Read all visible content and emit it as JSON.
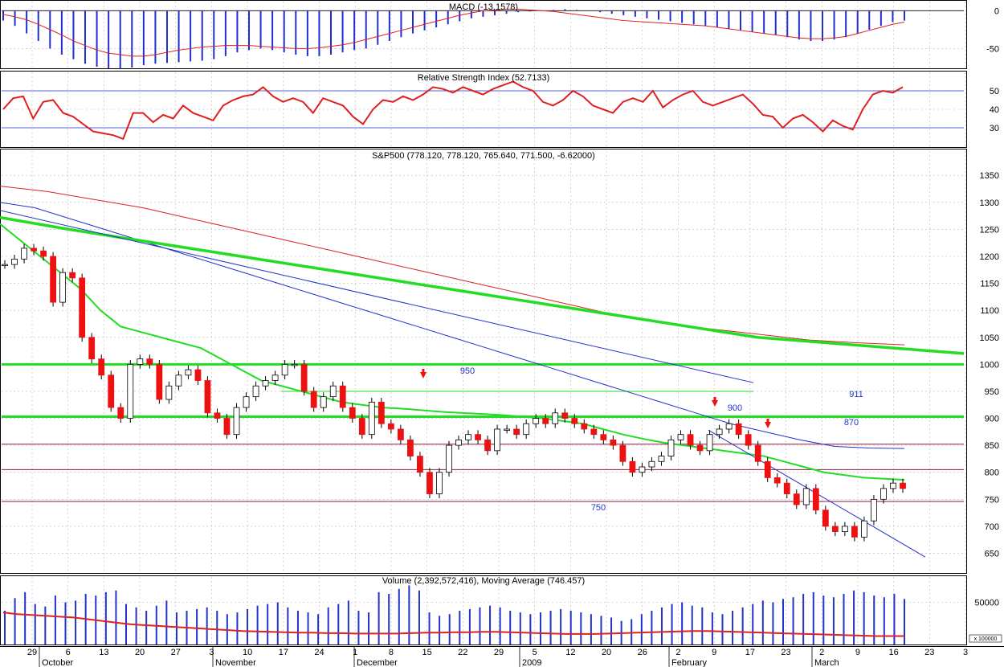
{
  "chart_data": [
    {
      "type": "bar",
      "panel": "macd",
      "title": "MACD (-13.1578)",
      "ylim": [
        -75,
        12
      ],
      "yticks": [
        0,
        -50
      ],
      "grid": true,
      "series": [
        {
          "values": [
            -13,
            -20,
            -30,
            -40,
            -50,
            -58,
            -64,
            -70,
            -74,
            -76,
            -77,
            -75,
            -72,
            -70,
            -69,
            -68,
            -67,
            -66,
            -64,
            -60,
            -55,
            -52,
            -50,
            -52,
            -55,
            -58,
            -60,
            -60,
            -58,
            -55,
            -52,
            -50,
            -45,
            -40,
            -35,
            -30,
            -26,
            -22,
            -18,
            -14,
            -10,
            -8,
            -6,
            -4,
            -2,
            -1,
            0,
            1,
            2,
            1,
            0,
            -2,
            -4,
            -6,
            -8,
            -10,
            -12,
            -14,
            -16,
            -18,
            -20,
            -22,
            -24,
            -26,
            -28,
            -30,
            -32,
            -35,
            -38,
            -40,
            -40,
            -38,
            -35,
            -30,
            -25,
            -20,
            -15,
            -13
          ]
        },
        {
          "values": [
            -5,
            -8,
            -12,
            -18,
            -25,
            -32,
            -40,
            -46,
            -52,
            -56,
            -58,
            -60,
            -60,
            -58,
            -55,
            -52,
            -50,
            -48,
            -47,
            -46,
            -46,
            -46,
            -47,
            -48,
            -49,
            -50,
            -50,
            -49,
            -47,
            -45,
            -42,
            -38,
            -34,
            -30,
            -26,
            -22,
            -18,
            -14,
            -10,
            -6,
            -3,
            0,
            1,
            2,
            2,
            1,
            0,
            -1,
            -3,
            -5,
            -7,
            -9,
            -11,
            -13,
            -14,
            -15,
            -16,
            -17,
            -18,
            -19,
            -20,
            -22,
            -24,
            -26,
            -28,
            -30,
            -32,
            -34,
            -36,
            -37,
            -37,
            -36,
            -34,
            -30,
            -26,
            -22,
            -18,
            -15
          ]
        }
      ]
    },
    {
      "type": "line",
      "panel": "rsi",
      "title": "Relative Strength Index (52.7133)",
      "ylim": [
        20,
        60
      ],
      "yticks": [
        50,
        40,
        30
      ],
      "reference_lines": [
        50,
        30
      ],
      "series": [
        {
          "values": [
            40,
            46,
            47,
            35,
            44,
            45,
            38,
            36,
            32,
            28,
            27,
            26,
            24,
            38,
            38,
            33,
            37,
            35,
            42,
            38,
            36,
            34,
            42,
            45,
            47,
            48,
            52,
            47,
            44,
            46,
            44,
            38,
            46,
            44,
            42,
            36,
            32,
            40,
            45,
            44,
            47,
            45,
            48,
            52,
            51,
            49,
            52,
            50,
            48,
            51,
            53,
            55,
            52,
            50,
            44,
            42,
            45,
            50,
            47,
            42,
            40,
            38,
            44,
            46,
            44,
            50,
            41,
            45,
            48,
            50,
            44,
            42,
            44,
            46,
            48,
            43,
            37,
            36,
            30,
            35,
            37,
            33,
            28,
            34,
            31,
            29,
            40,
            48,
            50,
            49,
            52
          ]
        }
      ]
    },
    {
      "type": "line",
      "panel": "price",
      "title": "S&P500 (778.120, 778.120, 765.640, 771.500, -6.62000)",
      "ylim": [
        615,
        1395
      ],
      "yticks": [
        1350,
        1300,
        1250,
        1200,
        1150,
        1100,
        1050,
        1000,
        950,
        900,
        850,
        800,
        750,
        700,
        650
      ],
      "grid": true,
      "reference_lines": [
        {
          "value": 1000,
          "color": "#22dd22"
        },
        {
          "value": 903,
          "color": "#22dd22"
        },
        {
          "value": 950,
          "color": "#22dd22"
        },
        {
          "value": 852,
          "color": "#8b1a3a"
        },
        {
          "value": 805,
          "color": "#8b1a3a"
        },
        {
          "value": 746,
          "color": "#8b1a3a"
        }
      ],
      "annotations": [
        "950",
        "900",
        "911",
        "870",
        "750"
      ],
      "series": [
        {
          "values": [
            1185,
            1195,
            1215,
            1210,
            1200,
            1115,
            1170,
            1160,
            1050,
            1010,
            980,
            920,
            900,
            1000,
            1010,
            1000,
            935,
            960,
            980,
            990,
            970,
            910,
            900,
            870,
            920,
            940,
            960,
            970,
            980,
            1000,
            1000,
            950,
            920,
            940,
            960,
            920,
            900,
            870,
            930,
            890,
            880,
            860,
            830,
            800,
            760,
            800,
            850,
            860,
            870,
            860,
            840,
            880,
            880,
            870,
            890,
            900,
            890,
            910,
            900,
            890,
            880,
            870,
            860,
            850,
            820,
            800,
            810,
            820,
            830,
            860,
            870,
            850,
            840,
            870,
            880,
            890,
            870,
            850,
            820,
            790,
            780,
            760,
            740,
            770,
            730,
            700,
            690,
            700,
            680,
            710,
            750,
            770,
            780,
            770
          ]
        },
        {
          "values": [
            1260,
            1230,
            1200,
            1170,
            1140,
            1100,
            1070,
            1060,
            1050,
            1040,
            1030,
            1010,
            990,
            970,
            960,
            950,
            940,
            930,
            925,
            920,
            918,
            915,
            912,
            910,
            908,
            906,
            903,
            900,
            895,
            890,
            880,
            870,
            862,
            855,
            850,
            845,
            840,
            835,
            830,
            820,
            810,
            800,
            795,
            790,
            788,
            786
          ]
        },
        {
          "values": [
            1300,
            1290,
            1270,
            1250,
            1230,
            1210,
            1190,
            1170,
            1150,
            1130,
            1110,
            1090,
            1070,
            1050,
            1030,
            1010,
            990,
            970,
            950,
            930,
            910,
            890,
            875,
            860,
            848,
            845,
            844
          ]
        },
        {
          "values": [
            1330,
            1320,
            1305,
            1290,
            1270,
            1250,
            1230,
            1210,
            1190,
            1170,
            1150,
            1130,
            1110,
            1090,
            1075,
            1065,
            1055,
            1045,
            1040,
            1036
          ]
        },
        {
          "values": [
            1272,
            1250,
            1230,
            1210,
            1190,
            1170,
            1150,
            1130,
            1110,
            1090,
            1070,
            1050,
            1040,
            1030,
            1020
          ]
        }
      ]
    },
    {
      "type": "bar",
      "panel": "volume",
      "title": "Volume (2,392,572,416), Moving Average (746.457)",
      "ylim": [
        0,
        80000
      ],
      "yticks": [
        50000
      ],
      "yunit_label": "x 100000",
      "series": [
        {
          "values": [
            40000,
            55000,
            62000,
            48000,
            45000,
            58000,
            50000,
            52000,
            60000,
            58000,
            62000,
            64000,
            48000,
            44000,
            40000,
            46000,
            52000,
            38000,
            40000,
            42000,
            44000,
            40000,
            36000,
            38000,
            42000,
            46000,
            48000,
            50000,
            44000,
            40000,
            38000,
            36000,
            44000,
            48000,
            52000,
            40000,
            38000,
            62000,
            60000,
            66000,
            70000,
            64000,
            38000,
            34000,
            36000,
            40000,
            42000,
            44000,
            46000,
            44000,
            40000,
            38000,
            36000,
            38000,
            40000,
            42000,
            40000,
            38000,
            36000,
            34000,
            32000,
            28000,
            30000,
            36000,
            40000,
            44000,
            48000,
            50000,
            46000,
            44000,
            38000,
            36000,
            40000,
            44000,
            48000,
            52000,
            50000,
            54000,
            56000,
            60000,
            62000,
            58000,
            56000,
            60000,
            64000,
            62000,
            58000,
            56000,
            60000,
            54000
          ]
        },
        {
          "values": [
            38000,
            36000,
            35000,
            34000,
            33000,
            32000,
            30000,
            28000,
            26000,
            24000,
            23000,
            22000,
            21000,
            20000,
            19000,
            18000,
            17000,
            16000,
            15500,
            15000,
            14500,
            14000,
            14000,
            13500,
            13500,
            13000,
            13000,
            13000,
            13000,
            13500,
            14000,
            14000,
            14500,
            14500,
            15000,
            15000,
            14500,
            14000,
            13500,
            13000,
            12500,
            12500,
            12500,
            13000,
            13500,
            14000,
            14500,
            15000,
            15500,
            16000,
            16000,
            15500,
            15000,
            14500,
            14000,
            13500,
            13000,
            12500,
            12000,
            11500,
            11000,
            10500,
            10000,
            10000,
            10000
          ]
        }
      ]
    }
  ],
  "x_axis": {
    "day_labels": [
      "29",
      "6",
      "13",
      "20",
      "27",
      "3",
      "10",
      "17",
      "24",
      "1",
      "8",
      "15",
      "22",
      "29",
      "5",
      "12",
      "20",
      "26",
      "2",
      "9",
      "17",
      "23",
      "2",
      "9",
      "16",
      "23",
      "3"
    ],
    "month_labels": [
      "October",
      "November",
      "December",
      "2009",
      "February",
      "March"
    ]
  },
  "colors": {
    "macd_histogram": "#1f2fd0",
    "macd_signal": "#e02020",
    "rsi_line": "#e02020",
    "ma_red": "#dd2222",
    "ma_blue": "#2233cc",
    "ma_green": "#22dd22",
    "candle_up": "#ffffff",
    "candle_down": "#ee1111",
    "candle_black": "#000000",
    "purple_line": "#8b1a3a",
    "volume_bars": "#2233cc",
    "arrow": "#ee1111",
    "annotation_text": "#2233cc"
  }
}
